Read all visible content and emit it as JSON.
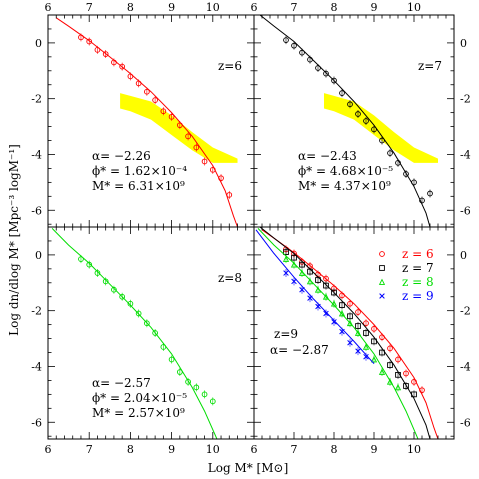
{
  "figure": {
    "ylabel": "Log dn/dlog M* [Mpc⁻³ logM⁻¹]",
    "xlabel": "Log M* [M⊙]",
    "x_ticks": [
      "6",
      "7",
      "8",
      "9",
      "10"
    ],
    "y_ticks": [
      "0",
      "-2",
      "-4",
      "-6"
    ]
  },
  "chart_data": [
    {
      "type": "scatter",
      "panel": "top-left",
      "redshift_label": "z=6",
      "color": "#ff0000",
      "xlim": [
        6,
        11
      ],
      "ylim": [
        -6.6,
        1.0
      ],
      "params": [
        "α= −2.26",
        "ϕ* = 1.62×10⁻⁴",
        "M* = 6.31×10⁹"
      ],
      "points": [
        [
          6.8,
          0.2
        ],
        [
          7.0,
          0.05
        ],
        [
          7.2,
          -0.25
        ],
        [
          7.4,
          -0.4
        ],
        [
          7.6,
          -0.7
        ],
        [
          7.8,
          -0.85
        ],
        [
          8.0,
          -1.2
        ],
        [
          8.2,
          -1.45
        ],
        [
          8.4,
          -1.75
        ],
        [
          8.6,
          -2.05
        ],
        [
          8.8,
          -2.45
        ],
        [
          9.0,
          -2.65
        ],
        [
          9.2,
          -2.95
        ],
        [
          9.4,
          -3.35
        ],
        [
          9.6,
          -3.75
        ],
        [
          9.8,
          -4.25
        ],
        [
          10.0,
          -4.55
        ],
        [
          10.2,
          -4.85
        ],
        [
          10.4,
          -5.45
        ]
      ],
      "fit_curve": [
        [
          6.2,
          0.9
        ],
        [
          6.5,
          0.6
        ],
        [
          7.0,
          0.08
        ],
        [
          7.5,
          -0.5
        ],
        [
          8.0,
          -1.1
        ],
        [
          8.5,
          -1.75
        ],
        [
          9.0,
          -2.5
        ],
        [
          9.5,
          -3.35
        ],
        [
          10.0,
          -4.4
        ],
        [
          10.3,
          -5.3
        ],
        [
          10.5,
          -6.2
        ],
        [
          10.6,
          -6.6
        ]
      ],
      "band": [
        [
          7.75,
          -1.8
        ],
        [
          8.0,
          -1.9
        ],
        [
          8.5,
          -2.1
        ],
        [
          9.0,
          -2.6
        ],
        [
          9.5,
          -3.2
        ],
        [
          10.0,
          -3.75
        ],
        [
          10.6,
          -4.15
        ],
        [
          10.6,
          -4.3
        ],
        [
          10.0,
          -4.3
        ],
        [
          9.5,
          -3.85
        ],
        [
          9.0,
          -3.3
        ],
        [
          8.5,
          -2.75
        ],
        [
          8.0,
          -2.45
        ],
        [
          7.75,
          -2.35
        ]
      ]
    },
    {
      "type": "scatter",
      "panel": "top-right",
      "redshift_label": "z=7",
      "color": "#000000",
      "xlim": [
        6,
        11
      ],
      "ylim": [
        -6.6,
        1.0
      ],
      "params": [
        "α= −2.43",
        "ϕ* = 4.68×10⁻⁵",
        "M* = 4.37×10⁹"
      ],
      "points": [
        [
          6.8,
          0.1
        ],
        [
          7.0,
          -0.1
        ],
        [
          7.2,
          -0.35
        ],
        [
          7.4,
          -0.6
        ],
        [
          7.6,
          -0.9
        ],
        [
          7.8,
          -1.1
        ],
        [
          8.0,
          -1.35
        ],
        [
          8.2,
          -1.8
        ],
        [
          8.4,
          -2.2
        ],
        [
          8.6,
          -2.55
        ],
        [
          8.8,
          -2.8
        ],
        [
          9.0,
          -3.1
        ],
        [
          9.2,
          -3.5
        ],
        [
          9.4,
          -3.95
        ],
        [
          9.6,
          -4.3
        ],
        [
          9.8,
          -4.7
        ],
        [
          10.0,
          -5.0
        ],
        [
          10.2,
          -5.65
        ],
        [
          10.4,
          -5.4
        ]
      ],
      "fit_curve": [
        [
          6.15,
          1.0
        ],
        [
          6.5,
          0.6
        ],
        [
          7.0,
          0.05
        ],
        [
          7.5,
          -0.65
        ],
        [
          8.0,
          -1.35
        ],
        [
          8.5,
          -2.1
        ],
        [
          9.0,
          -2.95
        ],
        [
          9.5,
          -3.95
        ],
        [
          10.0,
          -5.15
        ],
        [
          10.3,
          -6.1
        ],
        [
          10.4,
          -6.6
        ]
      ],
      "band": [
        [
          7.75,
          -1.8
        ],
        [
          8.0,
          -1.9
        ],
        [
          8.5,
          -2.1
        ],
        [
          9.0,
          -2.6
        ],
        [
          9.5,
          -3.2
        ],
        [
          10.0,
          -3.75
        ],
        [
          10.6,
          -4.15
        ],
        [
          10.6,
          -4.3
        ],
        [
          10.0,
          -4.3
        ],
        [
          9.5,
          -3.85
        ],
        [
          9.0,
          -3.3
        ],
        [
          8.5,
          -2.75
        ],
        [
          8.0,
          -2.45
        ],
        [
          7.75,
          -2.35
        ]
      ]
    },
    {
      "type": "scatter",
      "panel": "bottom-left",
      "redshift_label": "z=8",
      "color": "#00dd00",
      "xlim": [
        6,
        11
      ],
      "ylim": [
        -6.6,
        1.0
      ],
      "params": [
        "α= −2.57",
        "ϕ* = 2.04×10⁻⁵",
        "M* = 2.57×10⁹"
      ],
      "points": [
        [
          6.8,
          -0.15
        ],
        [
          7.0,
          -0.35
        ],
        [
          7.2,
          -0.65
        ],
        [
          7.4,
          -0.95
        ],
        [
          7.6,
          -1.25
        ],
        [
          7.8,
          -1.5
        ],
        [
          8.0,
          -1.75
        ],
        [
          8.2,
          -2.1
        ],
        [
          8.4,
          -2.45
        ],
        [
          8.6,
          -2.8
        ],
        [
          8.8,
          -3.3
        ],
        [
          9.0,
          -3.75
        ],
        [
          9.2,
          -4.2
        ],
        [
          9.4,
          -4.55
        ],
        [
          9.6,
          -4.75
        ],
        [
          9.8,
          -5.0
        ],
        [
          10.0,
          -5.25
        ]
      ],
      "fit_curve": [
        [
          6.1,
          0.95
        ],
        [
          6.5,
          0.35
        ],
        [
          7.0,
          -0.3
        ],
        [
          7.5,
          -1.05
        ],
        [
          8.0,
          -1.8
        ],
        [
          8.5,
          -2.6
        ],
        [
          9.0,
          -3.55
        ],
        [
          9.5,
          -4.75
        ],
        [
          9.8,
          -5.6
        ],
        [
          10.1,
          -6.6
        ]
      ]
    },
    {
      "type": "scatter",
      "panel": "bottom-right",
      "redshift_label": "z=9",
      "params": [
        "α= −2.87"
      ],
      "legend": [
        "z = 6",
        "z = 7",
        "z = 8",
        "z = 9"
      ],
      "legend_position": "top-right",
      "xlim": [
        6,
        11
      ],
      "ylim": [
        -6.6,
        1.0
      ],
      "series": [
        {
          "name": "z = 6",
          "color": "#ff0000",
          "marker": "circle",
          "points": [
            [
              6.8,
              0.2
            ],
            [
              7.0,
              0.05
            ],
            [
              7.2,
              -0.25
            ],
            [
              7.4,
              -0.4
            ],
            [
              7.6,
              -0.7
            ],
            [
              7.8,
              -0.85
            ],
            [
              8.0,
              -1.2
            ],
            [
              8.2,
              -1.45
            ],
            [
              8.4,
              -1.75
            ],
            [
              8.6,
              -2.05
            ],
            [
              8.8,
              -2.45
            ],
            [
              9.0,
              -2.65
            ],
            [
              9.2,
              -2.95
            ],
            [
              9.4,
              -3.35
            ],
            [
              9.6,
              -3.75
            ],
            [
              9.8,
              -4.25
            ],
            [
              10.0,
              -4.55
            ],
            [
              10.2,
              -4.85
            ]
          ],
          "fit_curve": [
            [
              6.2,
              0.9
            ],
            [
              6.5,
              0.6
            ],
            [
              7.0,
              0.08
            ],
            [
              7.5,
              -0.5
            ],
            [
              8.0,
              -1.1
            ],
            [
              8.5,
              -1.75
            ],
            [
              9.0,
              -2.5
            ],
            [
              9.5,
              -3.35
            ],
            [
              10.0,
              -4.4
            ],
            [
              10.3,
              -5.3
            ],
            [
              10.5,
              -6.2
            ],
            [
              10.6,
              -6.6
            ]
          ]
        },
        {
          "name": "z = 7",
          "color": "#000000",
          "marker": "square",
          "points": [
            [
              6.8,
              0.1
            ],
            [
              7.0,
              -0.1
            ],
            [
              7.2,
              -0.35
            ],
            [
              7.4,
              -0.6
            ],
            [
              7.6,
              -0.9
            ],
            [
              7.8,
              -1.1
            ],
            [
              8.0,
              -1.35
            ],
            [
              8.2,
              -1.8
            ],
            [
              8.4,
              -2.2
            ],
            [
              8.6,
              -2.55
            ],
            [
              8.8,
              -2.8
            ],
            [
              9.0,
              -3.1
            ],
            [
              9.2,
              -3.5
            ],
            [
              9.4,
              -3.95
            ],
            [
              9.6,
              -4.3
            ],
            [
              9.8,
              -4.7
            ],
            [
              10.0,
              -5.0
            ]
          ],
          "fit_curve": [
            [
              6.15,
              1.0
            ],
            [
              6.5,
              0.6
            ],
            [
              7.0,
              0.05
            ],
            [
              7.5,
              -0.65
            ],
            [
              8.0,
              -1.35
            ],
            [
              8.5,
              -2.1
            ],
            [
              9.0,
              -2.95
            ],
            [
              9.5,
              -3.95
            ],
            [
              10.0,
              -5.15
            ],
            [
              10.3,
              -6.1
            ],
            [
              10.4,
              -6.6
            ]
          ]
        },
        {
          "name": "z = 8",
          "color": "#00dd00",
          "marker": "triangle",
          "points": [
            [
              6.8,
              -0.15
            ],
            [
              7.0,
              -0.35
            ],
            [
              7.2,
              -0.65
            ],
            [
              7.4,
              -0.95
            ],
            [
              7.6,
              -1.25
            ],
            [
              7.8,
              -1.5
            ],
            [
              8.0,
              -1.75
            ],
            [
              8.2,
              -2.1
            ],
            [
              8.4,
              -2.45
            ],
            [
              8.6,
              -2.8
            ],
            [
              8.8,
              -3.3
            ],
            [
              9.0,
              -3.75
            ],
            [
              9.2,
              -4.2
            ],
            [
              9.4,
              -4.55
            ],
            [
              9.6,
              -4.75
            ]
          ],
          "fit_curve": [
            [
              6.1,
              0.95
            ],
            [
              6.5,
              0.35
            ],
            [
              7.0,
              -0.3
            ],
            [
              7.5,
              -1.05
            ],
            [
              8.0,
              -1.8
            ],
            [
              8.5,
              -2.6
            ],
            [
              9.0,
              -3.55
            ],
            [
              9.5,
              -4.75
            ],
            [
              9.8,
              -5.6
            ],
            [
              10.1,
              -6.6
            ]
          ]
        },
        {
          "name": "z = 9",
          "color": "#0000ff",
          "marker": "cross",
          "points": [
            [
              6.8,
              -0.65
            ],
            [
              7.0,
              -0.95
            ],
            [
              7.2,
              -1.25
            ],
            [
              7.4,
              -1.55
            ],
            [
              7.6,
              -1.85
            ],
            [
              7.8,
              -2.1
            ],
            [
              8.0,
              -2.4
            ],
            [
              8.2,
              -2.75
            ],
            [
              8.4,
              -3.15
            ],
            [
              8.6,
              -3.45
            ],
            [
              8.8,
              -3.65
            ]
          ],
          "fit_curve": [
            [
              6.05,
              0.9
            ],
            [
              6.5,
              0.05
            ],
            [
              7.0,
              -0.8
            ],
            [
              7.5,
              -1.6
            ],
            [
              8.0,
              -2.35
            ],
            [
              8.5,
              -3.1
            ],
            [
              9.0,
              -3.9
            ]
          ]
        }
      ]
    }
  ]
}
